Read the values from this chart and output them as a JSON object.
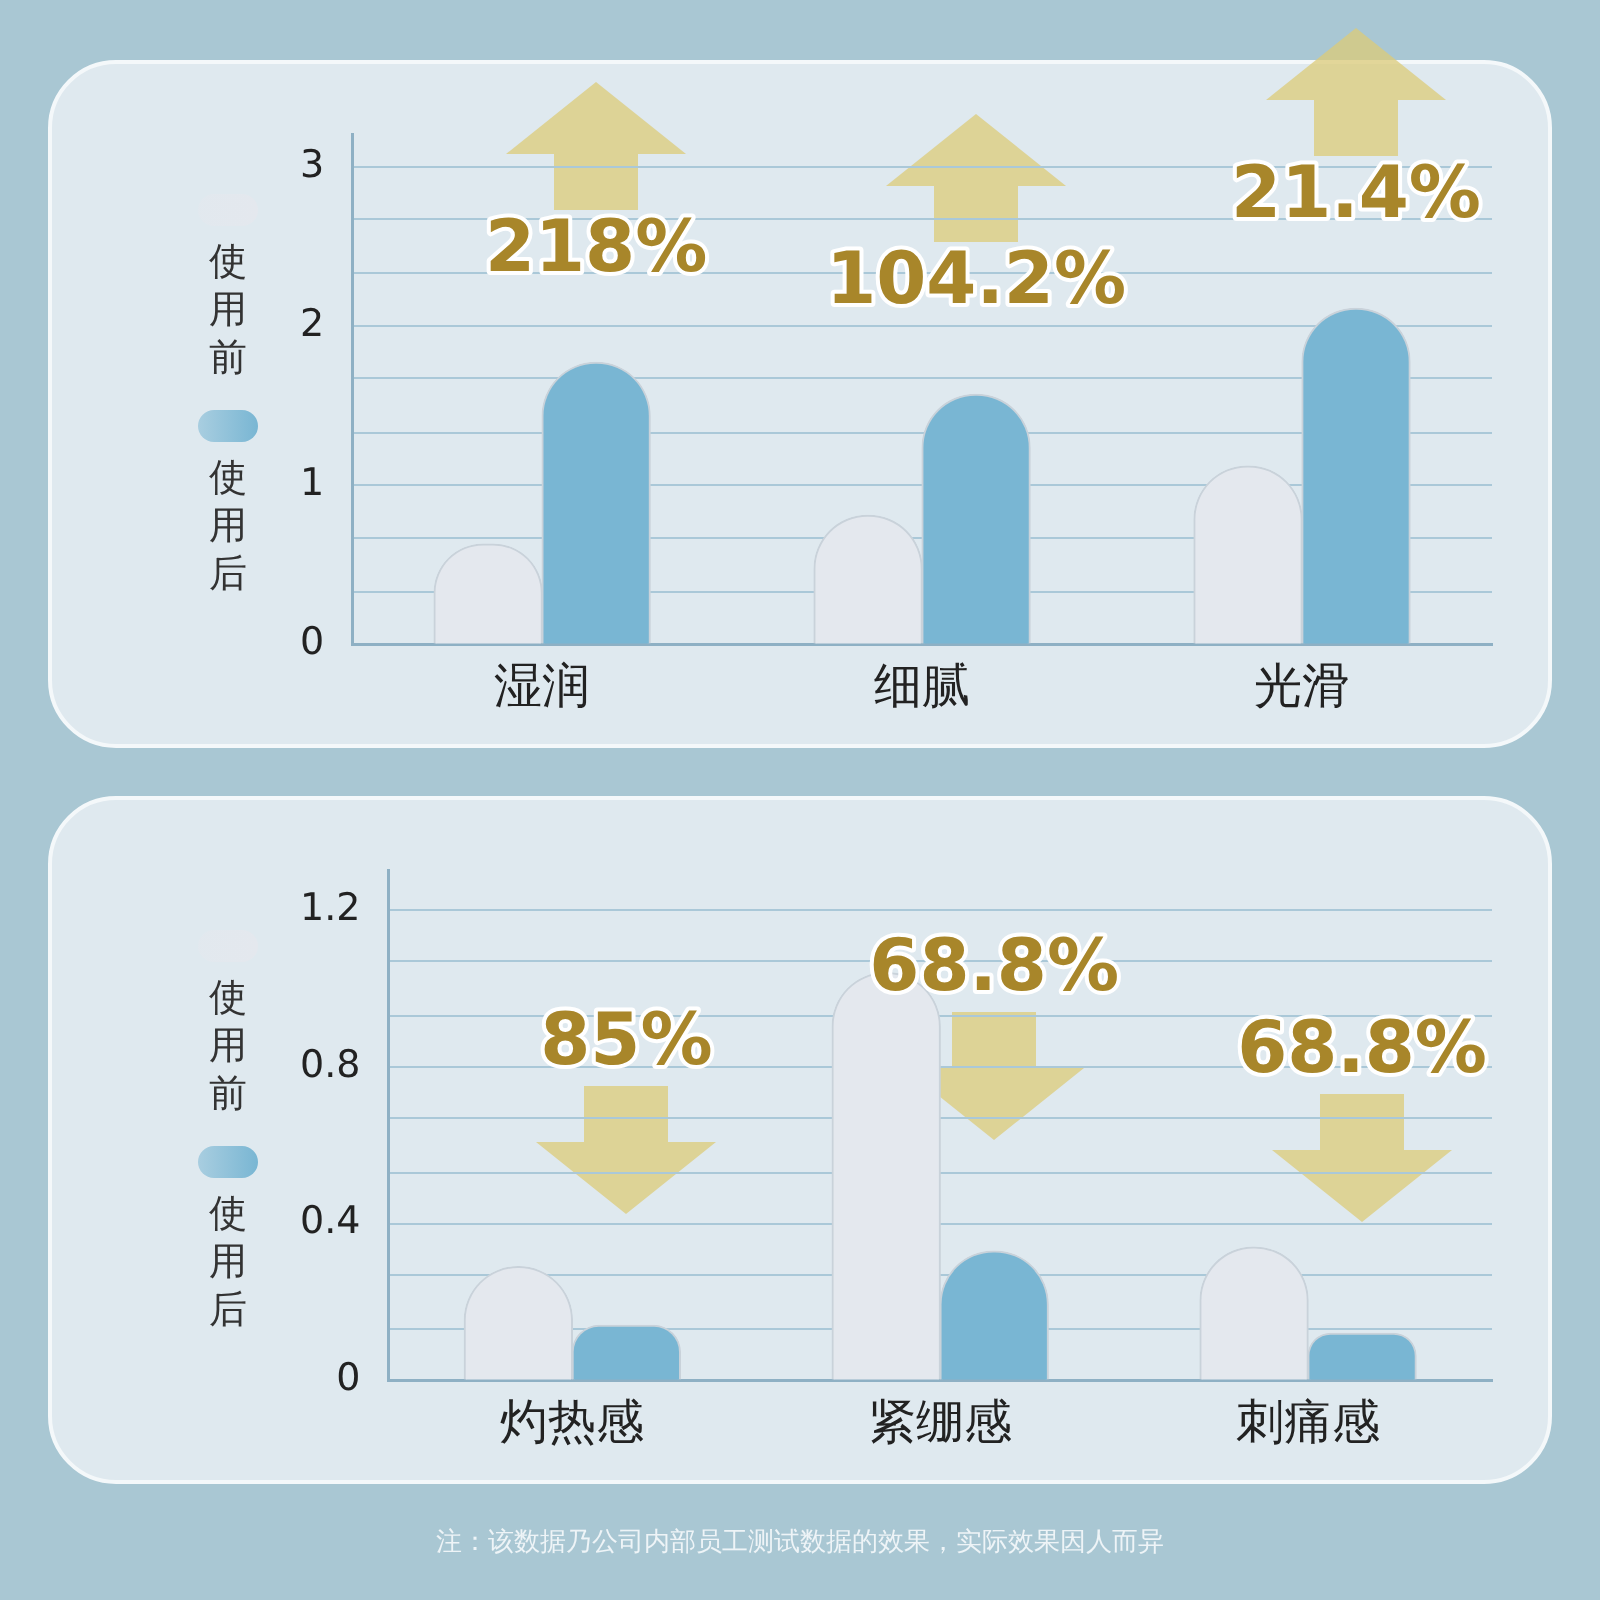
{
  "chart_data": [
    {
      "type": "bar",
      "categories": [
        "湿润",
        "细腻",
        "光滑"
      ],
      "series": [
        {
          "name": "使用前",
          "color": "#e4e8ee",
          "values": [
            0.63,
            0.81,
            1.12
          ]
        },
        {
          "name": "使用后",
          "color": "#79b6d3",
          "values": [
            1.77,
            1.57,
            2.11
          ]
        }
      ],
      "ylim": [
        0,
        3.2
      ],
      "yticks": [
        0,
        {
          "value": 0.33,
          "label": null
        },
        {
          "value": 0.67,
          "label": null
        },
        1,
        {
          "value": 1.33,
          "label": null
        },
        {
          "value": 1.67,
          "label": null
        },
        2,
        {
          "value": 2.33,
          "label": null
        },
        {
          "value": 2.67,
          "label": null
        },
        3
      ],
      "grid": "y",
      "legend": "left",
      "annotations": [
        "218%",
        "104.2%",
        "21.4%"
      ]
    },
    {
      "type": "bar",
      "categories": [
        "灼热感",
        "紧绷感",
        "刺痛感"
      ],
      "series": [
        {
          "name": "使用前",
          "color": "#e4e8ee",
          "values": [
            0.29,
            1.04,
            0.34
          ]
        },
        {
          "name": "使用后",
          "color": "#79b6d3",
          "values": [
            0.14,
            0.33,
            0.12
          ]
        }
      ],
      "ylim": [
        0,
        1.3
      ],
      "yticks": [
        0,
        {
          "value": 0.13,
          "label": null
        },
        {
          "value": 0.27,
          "label": null
        },
        0.4,
        {
          "value": 0.53,
          "label": null
        },
        {
          "value": 0.67,
          "label": null
        },
        0.8,
        {
          "value": 0.93,
          "label": null
        },
        {
          "value": 1.07,
          "label": null
        },
        1.2
      ],
      "grid": "y",
      "legend": "left",
      "annotations": [
        "85%",
        "68.8%",
        "68.8%",
        "注：该数据乃公司内部员工测试数据的效果，实际效果因人而异"
      ]
    }
  ]
}
